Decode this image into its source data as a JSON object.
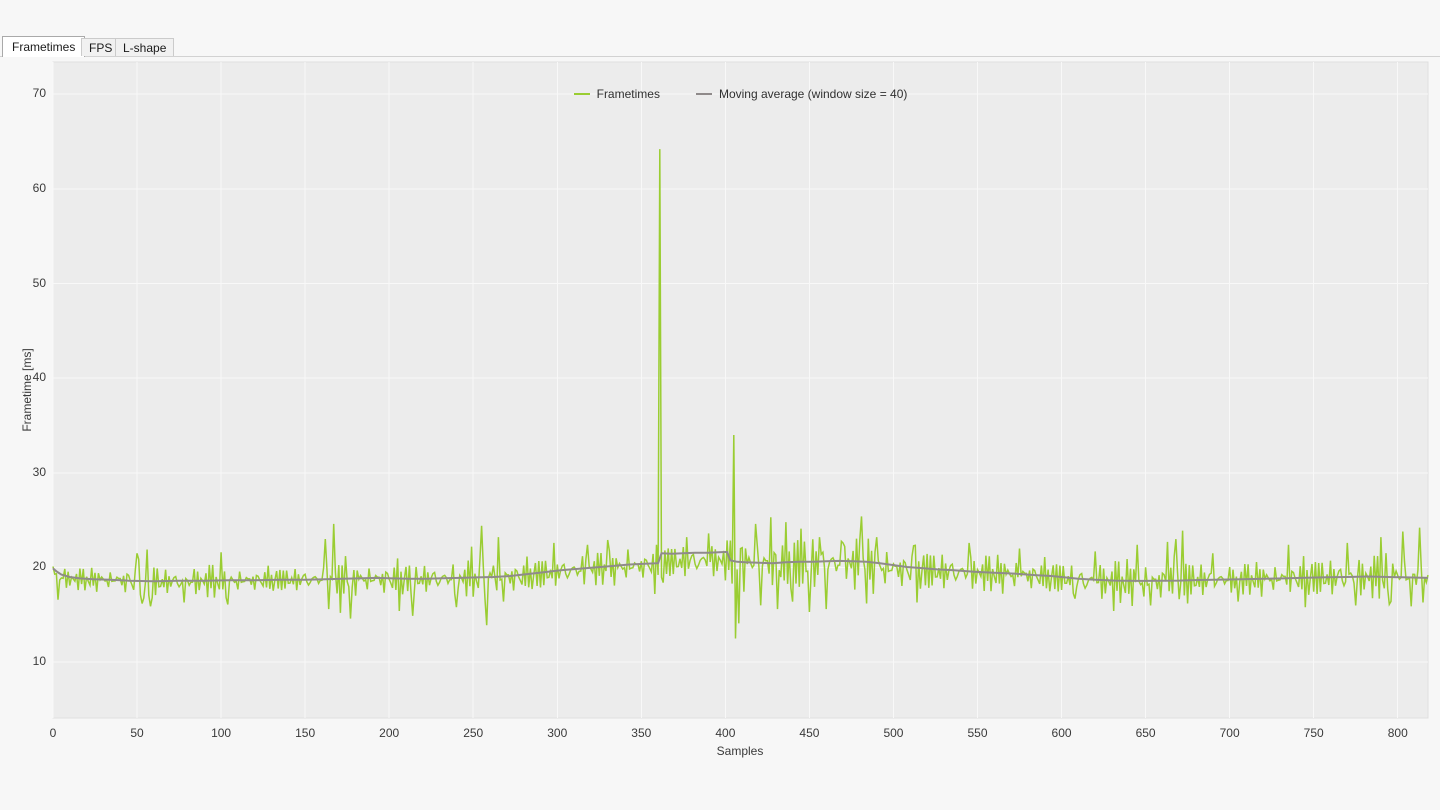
{
  "tabs": [
    {
      "label": "Frametimes",
      "active": true
    },
    {
      "label": "FPS",
      "active": false
    },
    {
      "label": "L-shape",
      "active": false
    }
  ],
  "chart_data": {
    "type": "line",
    "title": "",
    "xlabel": "Samples",
    "ylabel": "Frametime [ms]",
    "xlim": [
      0,
      818
    ],
    "ylim": [
      4.1,
      73.4
    ],
    "x_ticks": [
      0,
      50,
      100,
      150,
      200,
      250,
      300,
      350,
      400,
      450,
      500,
      550,
      600,
      650,
      700,
      750,
      800
    ],
    "y_ticks": [
      10,
      20,
      30,
      40,
      50,
      60,
      70
    ],
    "grid": true,
    "legend_position": "top-center",
    "plot_bg": "#ECECEC",
    "grid_color": "#F8F8F8",
    "border_color": "#DFDFDF",
    "series": [
      {
        "name": "Frametimes",
        "color": "#9ACD32",
        "width": 1.5,
        "baseline_keypoints": [
          [
            0,
            19.2
          ],
          [
            10,
            18.8
          ],
          [
            40,
            18.7
          ],
          [
            60,
            18.5
          ],
          [
            90,
            18.6
          ],
          [
            130,
            18.7
          ],
          [
            170,
            18.8
          ],
          [
            210,
            18.8
          ],
          [
            250,
            18.9
          ],
          [
            280,
            19.1
          ],
          [
            300,
            19.6
          ],
          [
            325,
            19.9
          ],
          [
            350,
            20.2
          ],
          [
            365,
            20.6
          ],
          [
            385,
            20.7
          ],
          [
            400,
            20.8
          ],
          [
            415,
            20.4
          ],
          [
            445,
            20.5
          ],
          [
            475,
            20.5
          ],
          [
            500,
            19.9
          ],
          [
            530,
            19.6
          ],
          [
            560,
            19.4
          ],
          [
            590,
            19.1
          ],
          [
            615,
            18.6
          ],
          [
            650,
            18.5
          ],
          [
            680,
            18.7
          ],
          [
            710,
            18.8
          ],
          [
            740,
            18.9
          ],
          [
            770,
            19.0
          ],
          [
            800,
            19.1
          ],
          [
            818,
            19.0
          ]
        ],
        "amplitude_keypoints": [
          [
            0,
            1.1
          ],
          [
            35,
            1.1
          ],
          [
            48,
            1.9
          ],
          [
            60,
            1.9
          ],
          [
            70,
            1.2
          ],
          [
            95,
            1.7
          ],
          [
            112,
            1.3
          ],
          [
            140,
            1.2
          ],
          [
            158,
            1.4
          ],
          [
            185,
            1.5
          ],
          [
            200,
            1.9
          ],
          [
            220,
            1.5
          ],
          [
            243,
            1.8
          ],
          [
            268,
            2.0
          ],
          [
            285,
            1.6
          ],
          [
            310,
            1.7
          ],
          [
            335,
            1.6
          ],
          [
            355,
            1.6
          ],
          [
            370,
            1.7
          ],
          [
            395,
            1.8
          ],
          [
            412,
            2.6
          ],
          [
            430,
            2.9
          ],
          [
            455,
            2.8
          ],
          [
            480,
            2.6
          ],
          [
            500,
            2.3
          ],
          [
            525,
            2.0
          ],
          [
            555,
            1.8
          ],
          [
            585,
            1.7
          ],
          [
            605,
            1.6
          ],
          [
            628,
            2.1
          ],
          [
            650,
            2.2
          ],
          [
            672,
            2.1
          ],
          [
            695,
            1.5
          ],
          [
            720,
            1.6
          ],
          [
            742,
            1.9
          ],
          [
            765,
            2.0
          ],
          [
            790,
            2.2
          ],
          [
            818,
            2.3
          ]
        ],
        "noise_a": [
          0.35,
          -0.75,
          1.0,
          -0.45,
          0.6,
          -1.0,
          0.25
        ],
        "noise_b": [
          -0.25,
          0.85,
          -0.55,
          0.45,
          -1.0,
          0.7,
          -0.35,
          1.0,
          -0.8,
          0.15,
          -0.6
        ],
        "noise_weights": [
          0.55,
          0.65
        ],
        "spike_events": [
          [
            0,
            20.1
          ],
          [
            1,
            19.3
          ],
          [
            3,
            16.6
          ],
          [
            50,
            21.5
          ],
          [
            53,
            16.2
          ],
          [
            56,
            21.9
          ],
          [
            58,
            15.9
          ],
          [
            78,
            16.3
          ],
          [
            100,
            21.6
          ],
          [
            104,
            16.1
          ],
          [
            162,
            23.0
          ],
          [
            164,
            15.6
          ],
          [
            167,
            24.6
          ],
          [
            171,
            15.2
          ],
          [
            174,
            21.2
          ],
          [
            177,
            14.6
          ],
          [
            206,
            15.4
          ],
          [
            214,
            14.9
          ],
          [
            240,
            15.8
          ],
          [
            249,
            22.2
          ],
          [
            255,
            24.4
          ],
          [
            258,
            13.9
          ],
          [
            262,
            20.2
          ],
          [
            265,
            23.2
          ],
          [
            268,
            16.4
          ],
          [
            298,
            22.6
          ],
          [
            318,
            22.4
          ],
          [
            330,
            22.9
          ],
          [
            342,
            21.9
          ],
          [
            358,
            17.2
          ],
          [
            361,
            64.2
          ],
          [
            363,
            18.4
          ],
          [
            377,
            23.2
          ],
          [
            390,
            23.6
          ],
          [
            404,
            18.3
          ],
          [
            405,
            34.0
          ],
          [
            406,
            12.5
          ],
          [
            407,
            19.8
          ],
          [
            408,
            14.1
          ],
          [
            409,
            22.0
          ],
          [
            418,
            24.6
          ],
          [
            421,
            16.0
          ],
          [
            427,
            25.3
          ],
          [
            431,
            15.6
          ],
          [
            436,
            24.8
          ],
          [
            440,
            16.4
          ],
          [
            445,
            24.1
          ],
          [
            450,
            15.3
          ],
          [
            456,
            23.2
          ],
          [
            460,
            15.6
          ],
          [
            470,
            22.6
          ],
          [
            481,
            25.4
          ],
          [
            484,
            16.2
          ],
          [
            490,
            23.2
          ],
          [
            512,
            22.3
          ],
          [
            514,
            16.3
          ],
          [
            545,
            22.6
          ],
          [
            575,
            22.0
          ],
          [
            608,
            16.7
          ],
          [
            620,
            21.7
          ],
          [
            631,
            15.4
          ],
          [
            645,
            22.4
          ],
          [
            653,
            16.0
          ],
          [
            663,
            22.7
          ],
          [
            668,
            23.0
          ],
          [
            672,
            23.9
          ],
          [
            675,
            16.2
          ],
          [
            690,
            21.5
          ],
          [
            705,
            16.4
          ],
          [
            735,
            22.4
          ],
          [
            745,
            15.8
          ],
          [
            770,
            22.6
          ],
          [
            775,
            16.0
          ],
          [
            790,
            23.2
          ],
          [
            795,
            16.1
          ],
          [
            803,
            23.8
          ],
          [
            808,
            15.9
          ],
          [
            813,
            24.2
          ],
          [
            815,
            16.3
          ],
          [
            818,
            19.2
          ]
        ]
      },
      {
        "name": "Moving average (window size = 40)",
        "color": "#8F8A8A",
        "width": 2,
        "points": [
          [
            0,
            19.9
          ],
          [
            2,
            19.6
          ],
          [
            5,
            19.25
          ],
          [
            10,
            19.0
          ],
          [
            16,
            18.85
          ],
          [
            24,
            18.75
          ],
          [
            34,
            18.7
          ],
          [
            45,
            18.6
          ],
          [
            60,
            18.55
          ],
          [
            75,
            18.6
          ],
          [
            90,
            18.6
          ],
          [
            105,
            18.65
          ],
          [
            120,
            18.65
          ],
          [
            135,
            18.7
          ],
          [
            150,
            18.7
          ],
          [
            162,
            18.75
          ],
          [
            172,
            18.8
          ],
          [
            182,
            18.85
          ],
          [
            192,
            18.9
          ],
          [
            202,
            18.85
          ],
          [
            212,
            18.8
          ],
          [
            222,
            18.82
          ],
          [
            232,
            18.86
          ],
          [
            242,
            18.9
          ],
          [
            252,
            18.95
          ],
          [
            262,
            19.0
          ],
          [
            272,
            19.1
          ],
          [
            282,
            19.3
          ],
          [
            292,
            19.5
          ],
          [
            302,
            19.7
          ],
          [
            312,
            19.85
          ],
          [
            322,
            20.0
          ],
          [
            332,
            20.15
          ],
          [
            342,
            20.3
          ],
          [
            352,
            20.4
          ],
          [
            360,
            20.45
          ],
          [
            362,
            21.5
          ],
          [
            368,
            21.45
          ],
          [
            375,
            21.5
          ],
          [
            382,
            21.55
          ],
          [
            390,
            21.55
          ],
          [
            396,
            21.6
          ],
          [
            401,
            21.65
          ],
          [
            403,
            20.75
          ],
          [
            407,
            20.6
          ],
          [
            412,
            20.55
          ],
          [
            420,
            20.5
          ],
          [
            428,
            20.45
          ],
          [
            436,
            20.55
          ],
          [
            444,
            20.6
          ],
          [
            452,
            20.6
          ],
          [
            460,
            20.65
          ],
          [
            468,
            20.7
          ],
          [
            476,
            20.65
          ],
          [
            484,
            20.6
          ],
          [
            492,
            20.45
          ],
          [
            500,
            20.25
          ],
          [
            508,
            20.05
          ],
          [
            516,
            19.95
          ],
          [
            526,
            19.8
          ],
          [
            536,
            19.7
          ],
          [
            548,
            19.55
          ],
          [
            560,
            19.45
          ],
          [
            572,
            19.35
          ],
          [
            584,
            19.2
          ],
          [
            594,
            19.1
          ],
          [
            602,
            18.95
          ],
          [
            610,
            18.8
          ],
          [
            620,
            18.7
          ],
          [
            632,
            18.62
          ],
          [
            645,
            18.58
          ],
          [
            658,
            18.6
          ],
          [
            670,
            18.62
          ],
          [
            682,
            18.68
          ],
          [
            695,
            18.72
          ],
          [
            708,
            18.76
          ],
          [
            720,
            18.8
          ],
          [
            732,
            18.85
          ],
          [
            745,
            18.92
          ],
          [
            758,
            18.96
          ],
          [
            770,
            19.0
          ],
          [
            782,
            19.05
          ],
          [
            794,
            19.0
          ],
          [
            806,
            18.95
          ],
          [
            818,
            18.9
          ]
        ]
      }
    ]
  }
}
